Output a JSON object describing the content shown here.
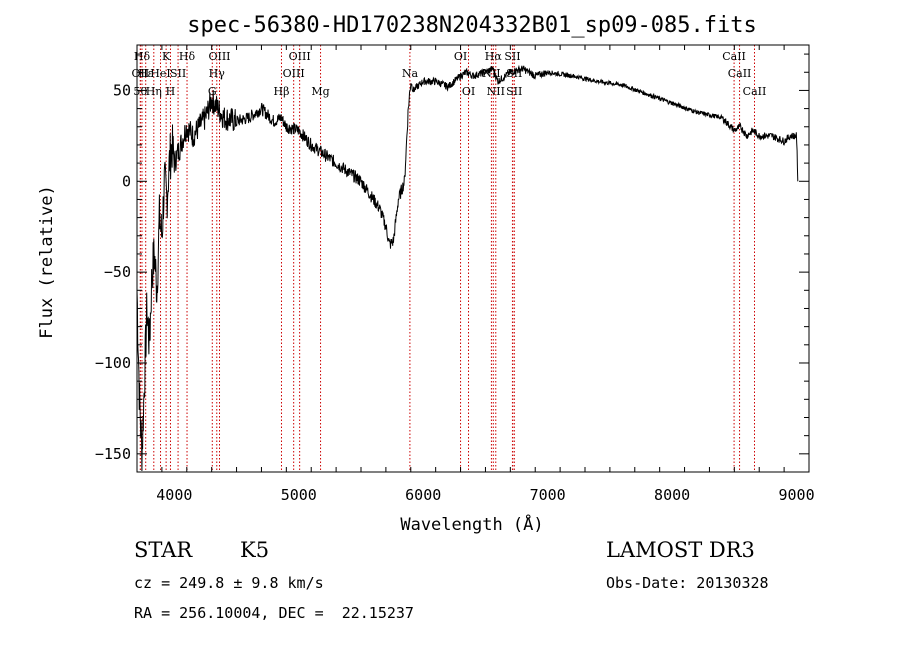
{
  "chart_data": {
    "type": "line",
    "title": "spec-56380-HD170238N204332B01_sp09-085.fits",
    "xlabel": "Wavelength (Å)",
    "ylabel": "Flux (relative)",
    "xlim": [
      3700,
      9100
    ],
    "ylim": [
      -160,
      75
    ],
    "xticks": [
      4000,
      5000,
      6000,
      7000,
      8000,
      9000
    ],
    "yticks": [
      -150,
      -100,
      -50,
      0,
      50
    ],
    "xtick_labels": [
      "4000",
      "5000",
      "6000",
      "7000",
      "8000",
      "9000"
    ],
    "ytick_labels": [
      "−150",
      "−100",
      "−50",
      "0",
      "50"
    ],
    "series": [
      {
        "name": "spectrum",
        "x": [
          3700,
          3720,
          3740,
          3760,
          3780,
          3800,
          3820,
          3840,
          3860,
          3880,
          3900,
          3920,
          3940,
          3960,
          3980,
          4000,
          4050,
          4100,
          4150,
          4200,
          4250,
          4300,
          4350,
          4400,
          4500,
          4600,
          4700,
          4800,
          4860,
          4900,
          5000,
          5100,
          5200,
          5300,
          5400,
          5500,
          5600,
          5650,
          5700,
          5730,
          5760,
          5800,
          5850,
          5880,
          5900,
          5920,
          5950,
          6000,
          6100,
          6200,
          6300,
          6350,
          6400,
          6500,
          6560,
          6600,
          6700,
          6800,
          6900,
          7000,
          7200,
          7400,
          7600,
          7800,
          8000,
          8200,
          8400,
          8500,
          8550,
          8600,
          8650,
          8700,
          8800,
          8900,
          8950,
          9000,
          9010
        ],
        "y": [
          -60,
          -120,
          -150,
          -110,
          -70,
          -90,
          -50,
          -40,
          -60,
          -20,
          -30,
          0,
          -10,
          10,
          20,
          10,
          20,
          30,
          25,
          30,
          35,
          45,
          40,
          35,
          33,
          35,
          40,
          33,
          35,
          30,
          28,
          20,
          15,
          10,
          5,
          0,
          -10,
          -15,
          -25,
          -35,
          -33,
          -10,
          0,
          40,
          55,
          50,
          52,
          55,
          55,
          52,
          58,
          60,
          58,
          60,
          62,
          55,
          60,
          62,
          58,
          60,
          58,
          55,
          53,
          48,
          43,
          38,
          35,
          28,
          30,
          25,
          28,
          25,
          25,
          22,
          25,
          25,
          0
        ]
      }
    ],
    "lines": [
      {
        "label": "Hδ",
        "x": 3740,
        "row": 1
      },
      {
        "label": "OII",
        "x": 3727,
        "row": 2
      },
      {
        "label": "50",
        "x": 3727,
        "row": 3
      },
      {
        "label": "Hε",
        "x": 3770,
        "row": 2
      },
      {
        "label": "Hη",
        "x": 3835,
        "row": 3
      },
      {
        "label": "K",
        "x": 3934,
        "row": 1
      },
      {
        "label": "HeI",
        "x": 3889,
        "row": 2
      },
      {
        "label": "H",
        "x": 3969,
        "row": 3
      },
      {
        "label": "SII",
        "x": 4030,
        "row": 2
      },
      {
        "label": "Hδ",
        "x": 4102,
        "row": 1
      },
      {
        "label": "OIII",
        "x": 4363,
        "row": 1
      },
      {
        "label": "Hγ",
        "x": 4341,
        "row": 2
      },
      {
        "label": "G",
        "x": 4305,
        "row": 3
      },
      {
        "label": "Hβ",
        "x": 4861,
        "row": 3
      },
      {
        "label": "OIII",
        "x": 4959,
        "row": 2
      },
      {
        "label": "OIII",
        "x": 5007,
        "row": 1
      },
      {
        "label": "Mg",
        "x": 5175,
        "row": 3
      },
      {
        "label": "Na",
        "x": 5893,
        "row": 2
      },
      {
        "label": "OI",
        "x": 6300,
        "row": 1
      },
      {
        "label": "OI",
        "x": 6364,
        "row": 3
      },
      {
        "label": "Hα",
        "x": 6563,
        "row": 1
      },
      {
        "label": "NII",
        "x": 6548,
        "row": 2
      },
      {
        "label": "NII",
        "x": 6583,
        "row": 3
      },
      {
        "label": "SII",
        "x": 6717,
        "row": 1
      },
      {
        "label": "SII",
        "x": 6731,
        "row": 2
      },
      {
        "label": "SII",
        "x": 6731,
        "row": 3
      },
      {
        "label": "CaII",
        "x": 8498,
        "row": 1
      },
      {
        "label": "CaII",
        "x": 8542,
        "row": 2
      },
      {
        "label": "CaII",
        "x": 8662,
        "row": 3
      }
    ]
  },
  "info": {
    "object_class": "STAR",
    "subclass": "K5",
    "survey": "LAMOST DR3",
    "cz": "cz = 249.8 ± 9.8 km/s",
    "obs_date": "Obs-Date: 20130328",
    "coords": "RA = 256.10004, DEC =  22.15237"
  }
}
